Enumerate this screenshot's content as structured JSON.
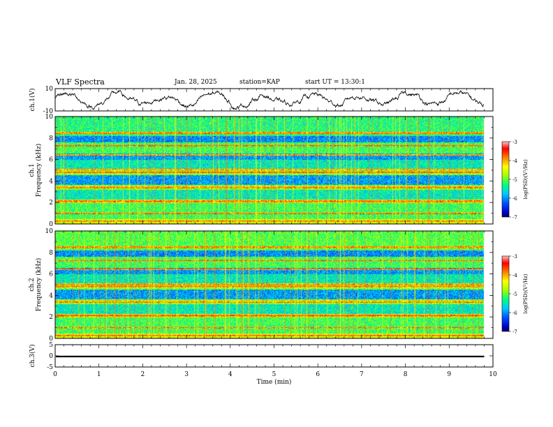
{
  "header": {
    "title": "VLF Spectra",
    "date": "Jan. 28, 2025",
    "station": "station=KAP",
    "start": "start UT = 13:30:1"
  },
  "chart_data": [
    {
      "type": "line",
      "name": "ch1-waveform",
      "ylabel": "ch.1(V)",
      "ylim": [
        -10,
        10
      ],
      "yticks": [
        "10",
        "-10"
      ],
      "xlim": [
        0,
        10
      ],
      "description_values": "noisy waveform oscillating roughly between -8 and +8 V across 0 to 9.8 min",
      "trace_end": 9.8
    },
    {
      "type": "heatmap",
      "name": "ch1-spectrogram",
      "ylabel": "Frequency (kHz)",
      "ylabel_prefix": "ch.1",
      "ylim": [
        0,
        10
      ],
      "yticks": [
        "0",
        "2",
        "4",
        "6",
        "8",
        "10"
      ],
      "xlim": [
        0,
        10
      ],
      "data_end": 9.8,
      "colorbar": {
        "label": "log(PSD)(V²/Hz)",
        "range": [
          -7,
          -3
        ],
        "ticks": [
          "-3",
          "-4",
          "-5",
          "-6",
          "-7"
        ]
      }
    },
    {
      "type": "heatmap",
      "name": "ch2-spectrogram",
      "ylabel": "Frequency (kHz)",
      "ylabel_prefix": "ch.2",
      "ylim": [
        0,
        10
      ],
      "yticks": [
        "0",
        "2",
        "4",
        "6",
        "8",
        "10"
      ],
      "xlim": [
        0,
        10
      ],
      "data_end": 9.8,
      "colorbar": {
        "label": "log(PSD)(V²/Hz)",
        "range": [
          -7,
          -3
        ],
        "ticks": [
          "-3",
          "-4",
          "-5",
          "-6",
          "-7"
        ]
      }
    },
    {
      "type": "line",
      "name": "ch3-waveform",
      "ylabel": "ch.3(V)",
      "ylim": [
        -5,
        5
      ],
      "yticks": [
        "5",
        "0",
        "-5"
      ],
      "xlim": [
        0,
        10
      ],
      "level": -0.3,
      "band_halfwidth": 0.35,
      "trace_end": 9.8
    }
  ],
  "xaxis": {
    "label": "Time (min)",
    "ticks": [
      "0",
      "1",
      "2",
      "3",
      "4",
      "5",
      "6",
      "7",
      "8",
      "9",
      "10"
    ]
  },
  "colors": {
    "trace": "#000000",
    "axis": "#000000",
    "colormap": [
      "#000000",
      "#0000c8",
      "#0050ff",
      "#00c8ff",
      "#00ff80",
      "#a0ff00",
      "#ffff00",
      "#ff8000",
      "#ff0000",
      "#ffffff"
    ]
  }
}
